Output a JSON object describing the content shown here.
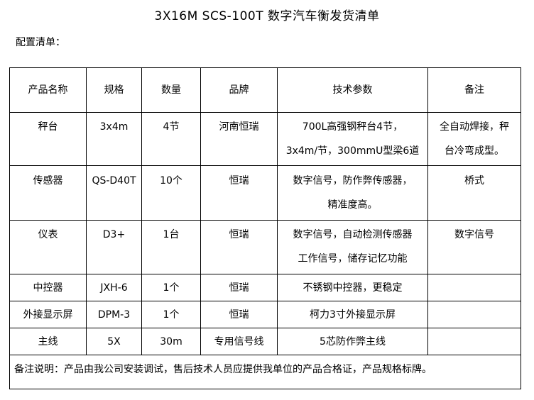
{
  "title": "3X16M SCS-100T 数字汽车衡发货清单",
  "subtitle": "配置清单：",
  "headers": [
    "产品名称",
    "规格",
    "数量",
    "品牌",
    "技术参数",
    "备注"
  ],
  "rows": [
    {
      "name": "秤台",
      "spec": "3x4m",
      "qty": "4节",
      "brand": "河南恒瑞",
      "tech": [
        "700L高强钢秤台4节，",
        "3x4m/节，300mmU型梁6道"
      ],
      "note": [
        "全自动焊接，秤",
        "台冷弯成型。"
      ]
    },
    {
      "name": "传感器",
      "spec": "QS-D40T",
      "qty": "10个",
      "brand": "恒瑞",
      "tech": [
        "数字信号，防作弊传感器，",
        "精准度高。"
      ],
      "note": [
        "桥式"
      ]
    },
    {
      "name": "仪表",
      "spec": "D3+",
      "qty": "1台",
      "brand": "恒瑞",
      "tech": [
        "数字信号，自动检测传感器",
        "工作信号，储存记忆功能"
      ],
      "note": [
        "数字信号"
      ]
    },
    {
      "name": "中控器",
      "spec": "JXH-6",
      "qty": "1个",
      "brand": "恒瑞",
      "tech": [
        "不锈钢中控器，更稳定"
      ],
      "note": [
        ""
      ]
    },
    {
      "name": "外接显示屏",
      "spec": "DPM-3",
      "qty": "1个",
      "brand": "恒瑞",
      "tech": [
        "柯力3寸外接显示屏"
      ],
      "note": [
        ""
      ]
    },
    {
      "name": "主线",
      "spec": "5X",
      "qty": "30m",
      "brand": "专用信号线",
      "tech": [
        "5芯防作弊主线"
      ],
      "note": [
        ""
      ]
    }
  ],
  "footer": "备注说明：产品由我公司安装调试，售后技术人员应提供我单位的产品合格证，产品规格标牌。"
}
